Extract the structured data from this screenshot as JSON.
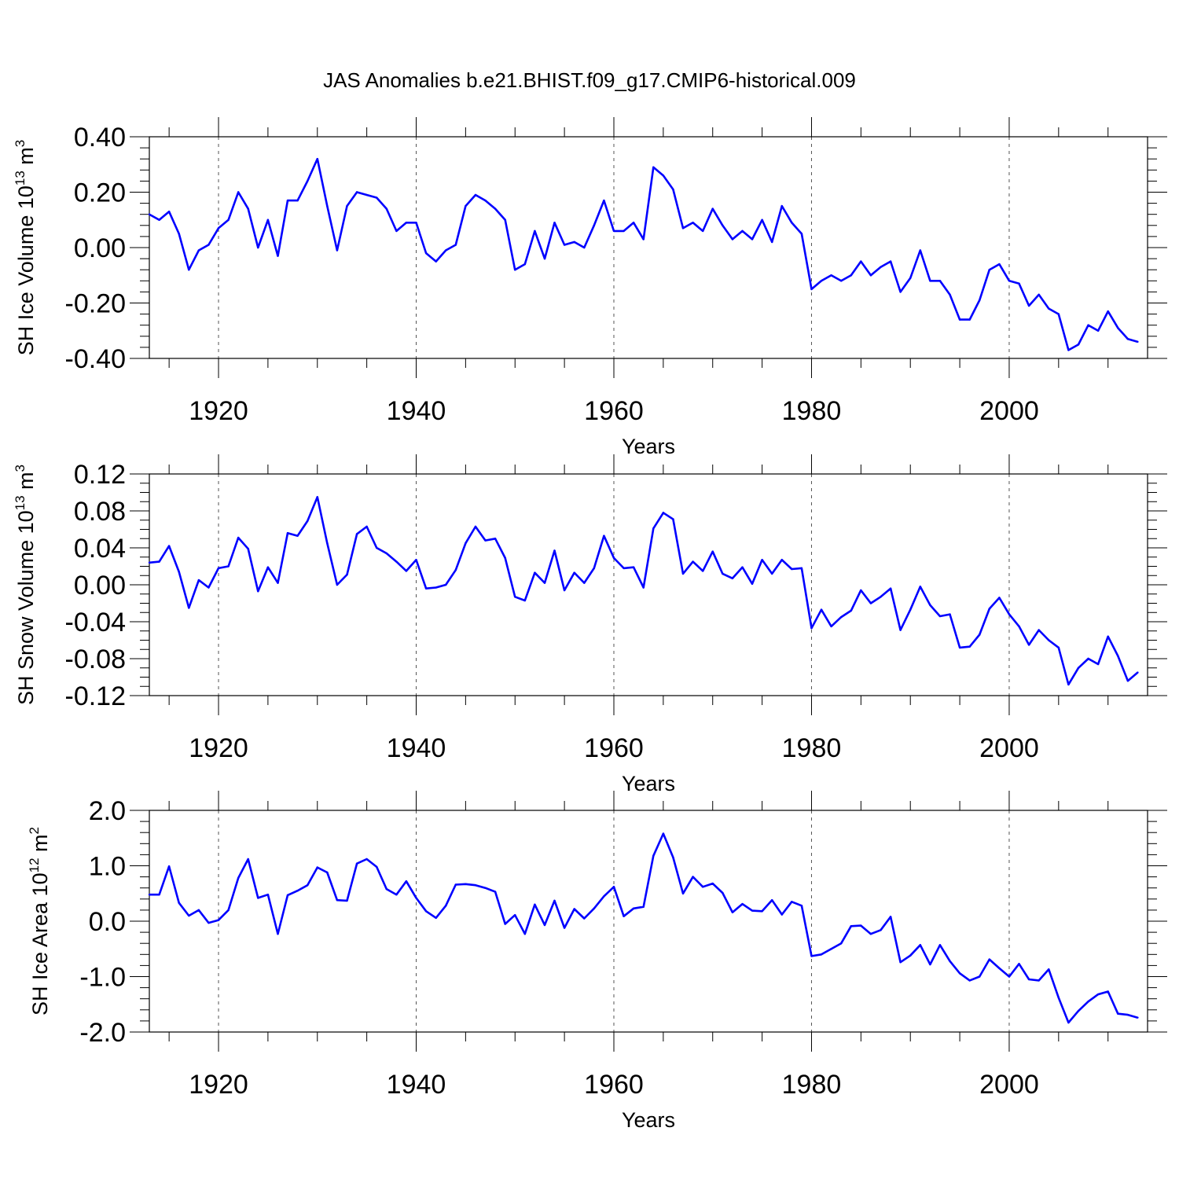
{
  "figure_title": "JAS Anomalies b.e21.BHIST.f09_g17.CMIP6-historical.009",
  "colors": {
    "line": "#0000ff",
    "axis": "#000000",
    "grid": "#555555"
  },
  "chart_data": [
    {
      "type": "line",
      "ylabel": "SH Ice Volume 10",
      "ylabel_exp": "13",
      "ylabel_unit": " m",
      "ylabel_unit_exp": "3",
      "xlabel": "Years",
      "xlim": [
        1913,
        2014
      ],
      "ylim": [
        -0.4,
        0.4
      ],
      "yticks": [
        -0.4,
        -0.2,
        0.0,
        0.2,
        0.4
      ],
      "ytick_labels": [
        "-0.40",
        "-0.20",
        "0.00",
        "0.20",
        "0.40"
      ],
      "y_minor_step": 0.04,
      "xticks": [
        1920,
        1940,
        1960,
        1980,
        2000
      ],
      "xtick_labels": [
        "1920",
        "1940",
        "1960",
        "1980",
        "2000"
      ],
      "x_minor_step": 5,
      "grid_x": [
        1920,
        1940,
        1960,
        1980,
        2000
      ],
      "x_start": 1913,
      "values": [
        0.12,
        0.1,
        0.13,
        0.05,
        -0.08,
        -0.01,
        0.01,
        0.07,
        0.1,
        0.2,
        0.14,
        0.0,
        0.1,
        -0.03,
        0.17,
        0.17,
        0.24,
        0.32,
        0.15,
        -0.01,
        0.15,
        0.2,
        0.19,
        0.18,
        0.14,
        0.06,
        0.09,
        0.09,
        -0.02,
        -0.05,
        -0.01,
        0.01,
        0.15,
        0.19,
        0.17,
        0.14,
        0.1,
        -0.08,
        -0.06,
        0.06,
        -0.04,
        0.09,
        0.01,
        0.02,
        0.0,
        0.08,
        0.17,
        0.06,
        0.06,
        0.09,
        0.03,
        0.29,
        0.26,
        0.21,
        0.07,
        0.09,
        0.06,
        0.14,
        0.08,
        0.03,
        0.06,
        0.03,
        0.1,
        0.02,
        0.15,
        0.09,
        0.05,
        -0.15,
        -0.12,
        -0.1,
        -0.12,
        -0.1,
        -0.05,
        -0.1,
        -0.07,
        -0.05,
        -0.16,
        -0.11,
        -0.01,
        -0.12,
        -0.12,
        -0.17,
        -0.26,
        -0.26,
        -0.19,
        -0.08,
        -0.06,
        -0.12,
        -0.13,
        -0.21,
        -0.17,
        -0.22,
        -0.24,
        -0.37,
        -0.35,
        -0.28,
        -0.3,
        -0.23,
        -0.29,
        -0.33,
        -0.34
      ]
    },
    {
      "type": "line",
      "ylabel": "SH Snow Volume 10",
      "ylabel_exp": "13",
      "ylabel_unit": " m",
      "ylabel_unit_exp": "3",
      "xlabel": "Years",
      "xlim": [
        1913,
        2014
      ],
      "ylim": [
        -0.12,
        0.12
      ],
      "yticks": [
        -0.12,
        -0.08,
        -0.04,
        0.0,
        0.04,
        0.08,
        0.12
      ],
      "ytick_labels": [
        "-0.12",
        "-0.08",
        "-0.04",
        "0.00",
        "0.04",
        "0.08",
        "0.12"
      ],
      "y_minor_step": 0.01,
      "xticks": [
        1920,
        1940,
        1960,
        1980,
        2000
      ],
      "xtick_labels": [
        "1920",
        "1940",
        "1960",
        "1980",
        "2000"
      ],
      "x_minor_step": 5,
      "grid_x": [
        1920,
        1940,
        1960,
        1980,
        2000
      ],
      "x_start": 1913,
      "values": [
        0.024,
        0.025,
        0.042,
        0.014,
        -0.025,
        0.005,
        -0.003,
        0.018,
        0.02,
        0.051,
        0.039,
        -0.007,
        0.019,
        0.002,
        0.056,
        0.053,
        0.069,
        0.095,
        0.045,
        0.0,
        0.011,
        0.055,
        0.063,
        0.04,
        0.034,
        0.025,
        0.015,
        0.027,
        -0.004,
        -0.003,
        0.0,
        0.016,
        0.045,
        0.063,
        0.048,
        0.05,
        0.029,
        -0.013,
        -0.017,
        0.013,
        0.002,
        0.037,
        -0.006,
        0.013,
        0.002,
        0.018,
        0.053,
        0.029,
        0.018,
        0.019,
        -0.003,
        0.061,
        0.078,
        0.071,
        0.012,
        0.025,
        0.015,
        0.036,
        0.012,
        0.007,
        0.019,
        0.001,
        0.027,
        0.012,
        0.027,
        0.017,
        0.018,
        -0.047,
        -0.027,
        -0.045,
        -0.035,
        -0.028,
        -0.006,
        -0.02,
        -0.013,
        -0.004,
        -0.049,
        -0.027,
        -0.002,
        -0.022,
        -0.034,
        -0.032,
        -0.068,
        -0.067,
        -0.054,
        -0.026,
        -0.014,
        -0.032,
        -0.045,
        -0.065,
        -0.049,
        -0.06,
        -0.068,
        -0.108,
        -0.09,
        -0.08,
        -0.086,
        -0.056,
        -0.077,
        -0.104,
        -0.095
      ]
    },
    {
      "type": "line",
      "ylabel": "SH Ice Area 10",
      "ylabel_exp": "12",
      "ylabel_unit": " m",
      "ylabel_unit_exp": "2",
      "xlabel": "Years",
      "xlim": [
        1913,
        2014
      ],
      "ylim": [
        -2.0,
        2.0
      ],
      "yticks": [
        -2.0,
        -1.0,
        0.0,
        1.0,
        2.0
      ],
      "ytick_labels": [
        "-2.0",
        "-1.0",
        "0.0",
        "1.0",
        "2.0"
      ],
      "y_minor_step": 0.2,
      "xticks": [
        1920,
        1940,
        1960,
        1980,
        2000
      ],
      "xtick_labels": [
        "1920",
        "1940",
        "1960",
        "1980",
        "2000"
      ],
      "x_minor_step": 5,
      "grid_x": [
        1920,
        1940,
        1960,
        1980,
        2000
      ],
      "x_start": 1913,
      "values": [
        0.48,
        0.48,
        0.99,
        0.33,
        0.1,
        0.2,
        -0.03,
        0.02,
        0.2,
        0.78,
        1.12,
        0.42,
        0.48,
        -0.23,
        0.47,
        0.55,
        0.65,
        0.97,
        0.88,
        0.38,
        0.37,
        1.04,
        1.12,
        0.98,
        0.58,
        0.48,
        0.72,
        0.42,
        0.18,
        0.06,
        0.28,
        0.66,
        0.67,
        0.65,
        0.6,
        0.53,
        -0.05,
        0.11,
        -0.23,
        0.3,
        -0.07,
        0.37,
        -0.12,
        0.22,
        0.05,
        0.23,
        0.45,
        0.62,
        0.09,
        0.23,
        0.26,
        1.18,
        1.58,
        1.15,
        0.5,
        0.8,
        0.62,
        0.68,
        0.51,
        0.16,
        0.31,
        0.19,
        0.18,
        0.38,
        0.12,
        0.35,
        0.28,
        -0.63,
        -0.6,
        -0.5,
        -0.4,
        -0.09,
        -0.08,
        -0.23,
        -0.16,
        0.08,
        -0.74,
        -0.62,
        -0.43,
        -0.78,
        -0.43,
        -0.72,
        -0.94,
        -1.07,
        -1.0,
        -0.69,
        -0.85,
        -1.0,
        -0.77,
        -1.05,
        -1.07,
        -0.87,
        -1.38,
        -1.83,
        -1.62,
        -1.45,
        -1.32,
        -1.27,
        -1.67,
        -1.69,
        -1.74
      ]
    }
  ]
}
